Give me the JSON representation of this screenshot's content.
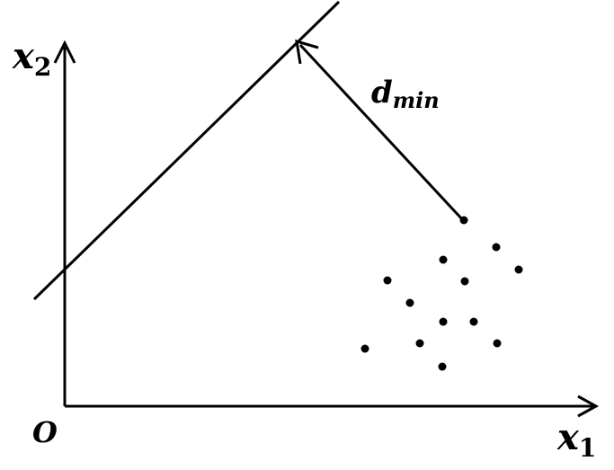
{
  "diagram": {
    "origin_label": "O",
    "x_axis_label": {
      "base": "x",
      "sub": "1"
    },
    "y_axis_label": {
      "base": "x",
      "sub": "2"
    },
    "distance_label": {
      "base": "d",
      "sub": "min"
    },
    "stroke_color": "#000000",
    "background_color": "#ffffff",
    "elements": [
      "x1-axis",
      "x2-axis",
      "separating-line",
      "distance-arrow",
      "data-points"
    ],
    "data_point_count": 13
  }
}
